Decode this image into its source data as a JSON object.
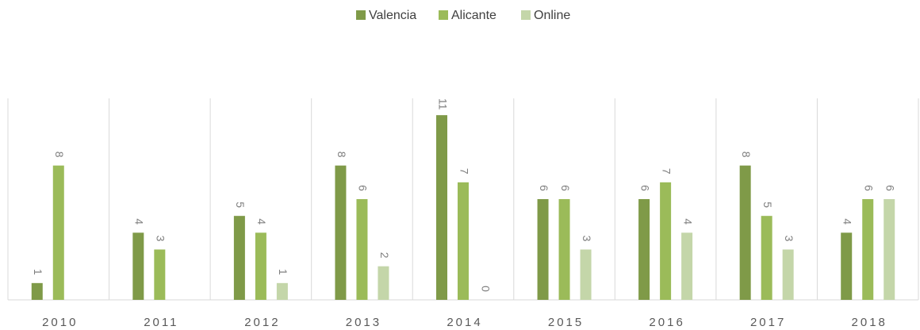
{
  "chart_data": {
    "type": "bar",
    "categories": [
      "2010",
      "2011",
      "2012",
      "2013",
      "2014",
      "2015",
      "2016",
      "2017",
      "2018"
    ],
    "series": [
      {
        "name": "Valencia",
        "color": "#7f9a48",
        "values": [
          1,
          4,
          5,
          8,
          11,
          6,
          6,
          8,
          4
        ]
      },
      {
        "name": "Alicante",
        "color": "#9bbb59",
        "values": [
          8,
          3,
          4,
          6,
          7,
          6,
          7,
          5,
          6
        ]
      },
      {
        "name": "Online",
        "color": "#c4d6a9",
        "values": [
          null,
          null,
          1,
          2,
          0,
          3,
          4,
          3,
          6
        ]
      }
    ],
    "ylim": [
      0,
      12
    ],
    "legend": "top"
  }
}
